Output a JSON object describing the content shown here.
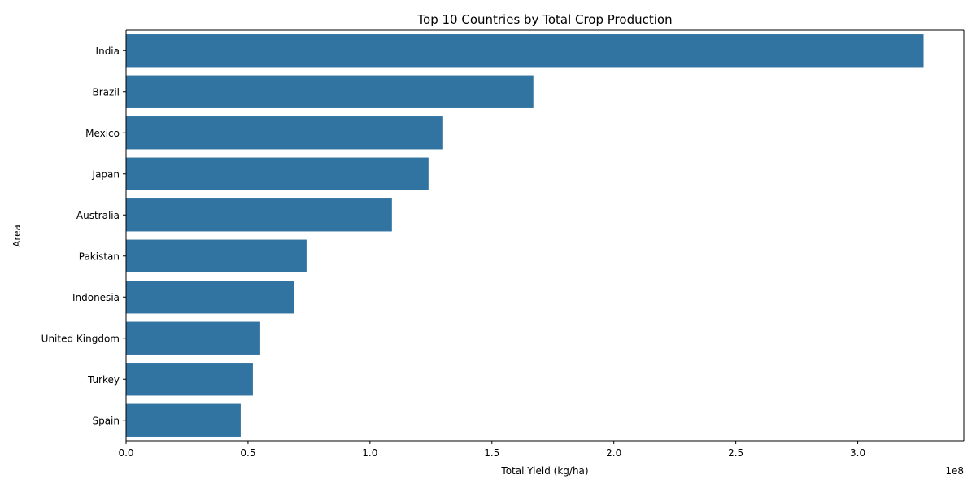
{
  "chart_data": {
    "type": "bar",
    "orientation": "horizontal",
    "title": "Top 10 Countries by Total Crop Production",
    "xlabel": "Total Yield (kg/ha)",
    "ylabel": "Area",
    "x_offset_label": "1e8",
    "xlim": [
      0,
      3.435
    ],
    "x_ticks": [
      0.0,
      0.5,
      1.0,
      1.5,
      2.0,
      2.5,
      3.0
    ],
    "x_tick_labels": [
      "0.0",
      "0.5",
      "1.0",
      "1.5",
      "2.0",
      "2.5",
      "3.0"
    ],
    "grid": false,
    "categories": [
      "India",
      "Brazil",
      "Mexico",
      "Japan",
      "Australia",
      "Pakistan",
      "Indonesia",
      "United Kingdom",
      "Turkey",
      "Spain"
    ],
    "values": [
      3.27,
      1.67,
      1.3,
      1.24,
      1.09,
      0.74,
      0.69,
      0.55,
      0.52,
      0.47
    ],
    "value_unit_scale": "1e8",
    "bar_color": "#3274a1"
  }
}
